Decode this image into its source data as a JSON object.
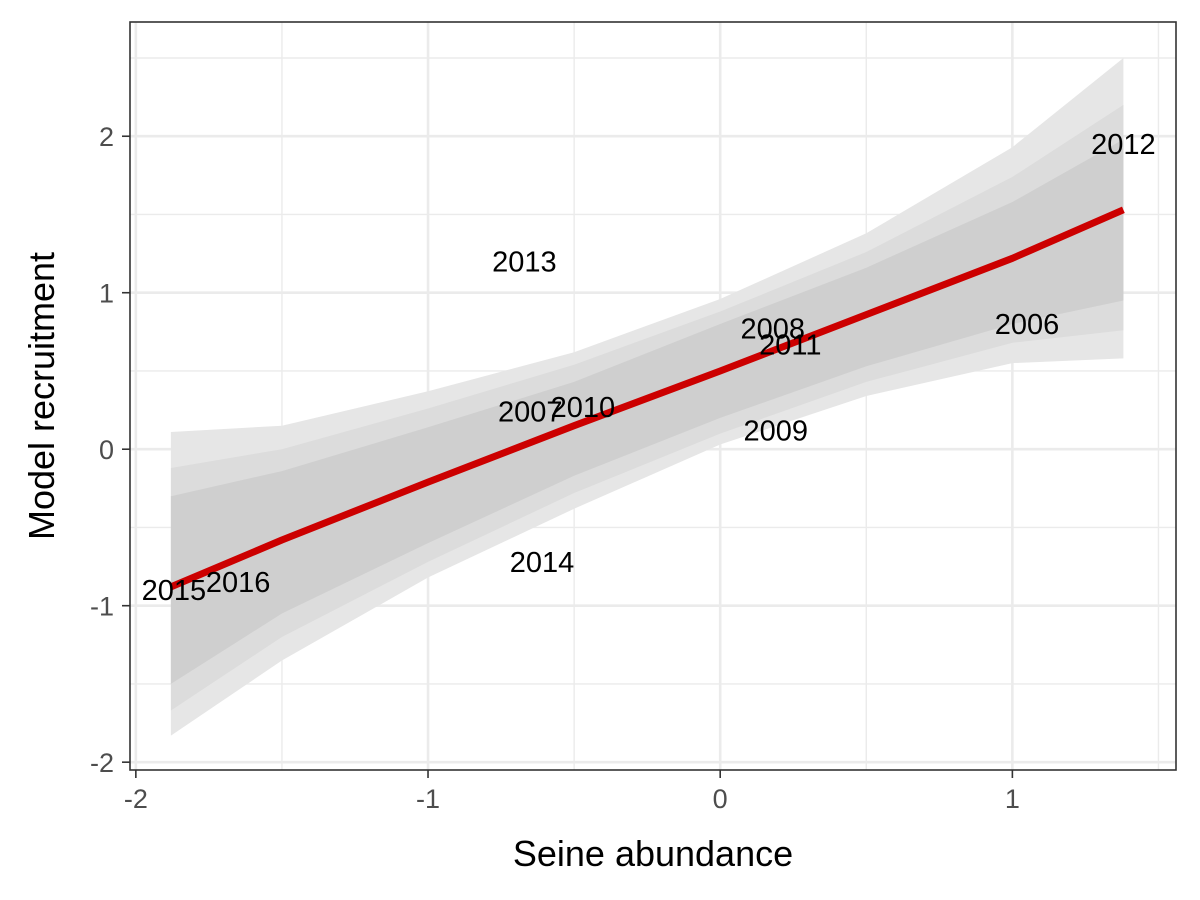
{
  "chart_data": {
    "type": "scatter",
    "xlabel": "Seine abundance",
    "ylabel": "Model recruitment",
    "xlim": [
      -2.02,
      1.56
    ],
    "ylim": [
      -2.05,
      2.73
    ],
    "x_ticks": [
      -2,
      -1,
      0,
      1
    ],
    "x_tick_labels": [
      "-2",
      "-1",
      "0",
      "1"
    ],
    "y_ticks": [
      -2,
      -1,
      0,
      1,
      2
    ],
    "y_tick_labels": [
      "-2",
      "-1",
      "0",
      "1",
      "2"
    ],
    "grid": true,
    "legend": "none",
    "colors": {
      "fit_line": "#cc0000",
      "band_outer": "#e6e6e6",
      "band_mid": "#dcdcdc",
      "band_inner": "#cfcfcf",
      "grid": "#ebebeb",
      "panel_border": "#333333"
    },
    "points": [
      {
        "label": "2006",
        "x": 1.05,
        "y": 0.8
      },
      {
        "label": "2007",
        "x": -0.65,
        "y": 0.24
      },
      {
        "label": "2008",
        "x": 0.18,
        "y": 0.77
      },
      {
        "label": "2009",
        "x": 0.19,
        "y": 0.12
      },
      {
        "label": "2010",
        "x": -0.47,
        "y": 0.27
      },
      {
        "label": "2011",
        "x": 0.24,
        "y": 0.67
      },
      {
        "label": "2012",
        "x": 1.38,
        "y": 1.95
      },
      {
        "label": "2013",
        "x": -0.67,
        "y": 1.2
      },
      {
        "label": "2014",
        "x": -0.61,
        "y": -0.72
      },
      {
        "label": "2015",
        "x": -1.87,
        "y": -0.9
      },
      {
        "label": "2016",
        "x": -1.65,
        "y": -0.85
      }
    ],
    "fit": {
      "x": [
        -1.88,
        -1.5,
        -1.0,
        -0.5,
        0.0,
        0.5,
        1.0,
        1.38
      ],
      "y": [
        -0.88,
        -0.58,
        -0.21,
        0.15,
        0.5,
        0.86,
        1.22,
        1.53
      ]
    },
    "bands": [
      {
        "name": "outer",
        "x": [
          -1.88,
          -1.5,
          -1.0,
          -0.5,
          0.0,
          0.5,
          1.0,
          1.38
        ],
        "lower": [
          -1.83,
          -1.35,
          -0.82,
          -0.38,
          0.03,
          0.34,
          0.55,
          0.58
        ],
        "upper": [
          0.11,
          0.15,
          0.37,
          0.62,
          0.96,
          1.38,
          1.93,
          2.5
        ]
      },
      {
        "name": "mid",
        "x": [
          -1.88,
          -1.5,
          -1.0,
          -0.5,
          0.0,
          0.5,
          1.0,
          1.38
        ],
        "lower": [
          -1.67,
          -1.2,
          -0.72,
          -0.28,
          0.1,
          0.43,
          0.68,
          0.76
        ],
        "upper": [
          -0.12,
          0.0,
          0.26,
          0.54,
          0.88,
          1.26,
          1.74,
          2.2
        ]
      },
      {
        "name": "inner",
        "x": [
          -1.88,
          -1.5,
          -1.0,
          -0.5,
          0.0,
          0.5,
          1.0,
          1.38
        ],
        "lower": [
          -1.5,
          -1.05,
          -0.6,
          -0.17,
          0.2,
          0.53,
          0.8,
          0.95
        ],
        "upper": [
          -0.3,
          -0.14,
          0.14,
          0.43,
          0.8,
          1.16,
          1.58,
          1.98
        ]
      }
    ]
  }
}
